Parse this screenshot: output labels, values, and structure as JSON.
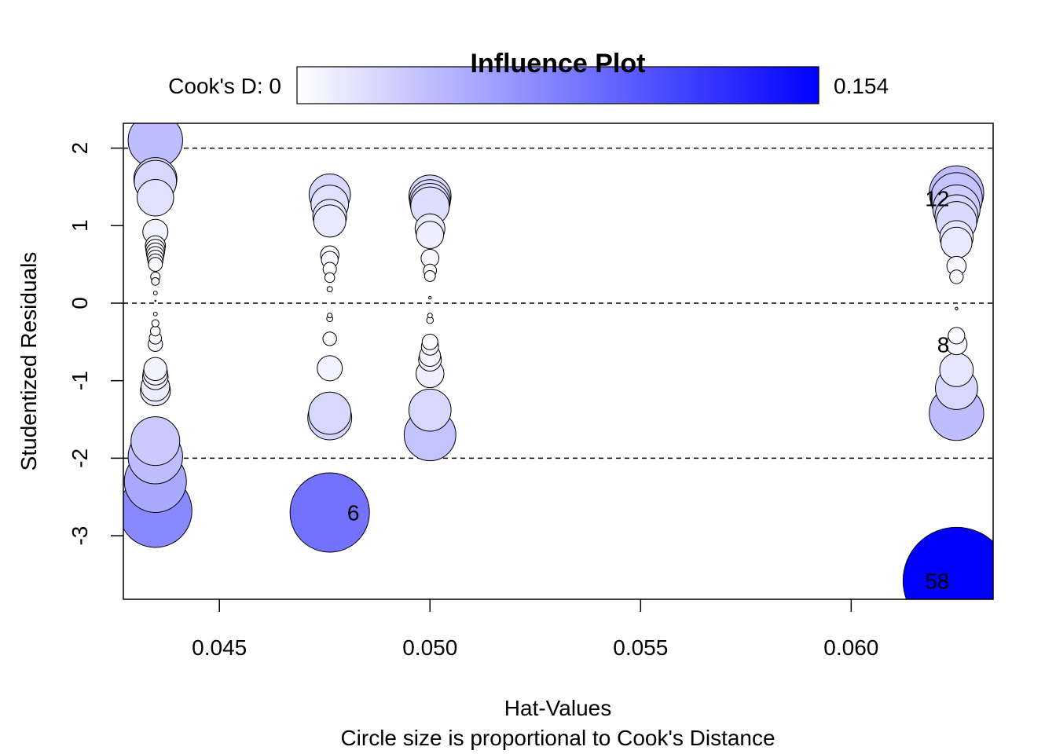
{
  "chart_data": {
    "type": "scatter",
    "title": "Influence Plot",
    "xlabel": "Hat-Values",
    "ylabel": "Studentized Residuals",
    "subtitle": "Circle size is proportional to Cook's Distance",
    "xlim": [
      0.04272,
      0.06337
    ],
    "ylim": [
      -3.82,
      2.32
    ],
    "x_ticks": [
      0.045,
      0.05,
      0.055,
      0.06
    ],
    "x_tick_labels": [
      "0.045",
      "0.050",
      "0.055",
      "0.060"
    ],
    "y_ticks": [
      -3,
      -2,
      -1,
      0,
      1,
      2
    ],
    "y_tick_labels": [
      "-3",
      "-2",
      "-1",
      "0",
      "1",
      "2"
    ],
    "reference_lines": [
      -2,
      0,
      2
    ],
    "grid": false,
    "legend": {
      "label_left": "Cook's D: 0",
      "label_right": "0.154",
      "min": 0,
      "max": 0.154,
      "color_low": "#ffffff",
      "color_high": "#0000ff",
      "placement": "top"
    },
    "points": [
      {
        "x": 0.04348,
        "y": 2.1,
        "d": 0.04
      },
      {
        "x": 0.04348,
        "y": 1.6,
        "d": 0.025
      },
      {
        "x": 0.04348,
        "y": 1.57,
        "d": 0.024
      },
      {
        "x": 0.04348,
        "y": 1.36,
        "d": 0.018
      },
      {
        "x": 0.04348,
        "y": 0.92,
        "d": 0.0085
      },
      {
        "x": 0.04348,
        "y": 0.74,
        "d": 0.0055
      },
      {
        "x": 0.04348,
        "y": 0.7,
        "d": 0.005
      },
      {
        "x": 0.04348,
        "y": 0.66,
        "d": 0.0045
      },
      {
        "x": 0.04348,
        "y": 0.62,
        "d": 0.004
      },
      {
        "x": 0.04348,
        "y": 0.58,
        "d": 0.0035
      },
      {
        "x": 0.04348,
        "y": 0.54,
        "d": 0.003
      },
      {
        "x": 0.04348,
        "y": 0.5,
        "d": 0.0026
      },
      {
        "x": 0.04348,
        "y": 0.34,
        "d": 0.0012
      },
      {
        "x": 0.04348,
        "y": 0.28,
        "d": 0.0008
      },
      {
        "x": 0.04348,
        "y": 0.13,
        "d": 0.0002
      },
      {
        "x": 0.04348,
        "y": 0.03,
        "d": 1e-05
      },
      {
        "x": 0.04348,
        "y": -0.14,
        "d": 0.0002
      },
      {
        "x": 0.04348,
        "y": -0.26,
        "d": 0.0007
      },
      {
        "x": 0.04348,
        "y": -0.36,
        "d": 0.0013
      },
      {
        "x": 0.04348,
        "y": -0.45,
        "d": 0.002
      },
      {
        "x": 0.04348,
        "y": -0.53,
        "d": 0.0028
      },
      {
        "x": 0.04348,
        "y": -0.85,
        "d": 0.0072
      },
      {
        "x": 0.04348,
        "y": -0.9,
        "d": 0.008
      },
      {
        "x": 0.04348,
        "y": -0.95,
        "d": 0.0088
      },
      {
        "x": 0.04348,
        "y": -1.08,
        "d": 0.011
      },
      {
        "x": 0.04348,
        "y": -1.13,
        "d": 0.0122
      },
      {
        "x": 0.04348,
        "y": -1.78,
        "d": 0.032
      },
      {
        "x": 0.04348,
        "y": -1.98,
        "d": 0.04
      },
      {
        "x": 0.04348,
        "y": -2.3,
        "d": 0.052
      },
      {
        "x": 0.04348,
        "y": -2.68,
        "d": 0.072
      },
      {
        "x": 0.04762,
        "y": 1.4,
        "d": 0.023
      },
      {
        "x": 0.04762,
        "y": 1.28,
        "d": 0.019
      },
      {
        "x": 0.04762,
        "y": 1.12,
        "d": 0.0155
      },
      {
        "x": 0.04762,
        "y": 1.06,
        "d": 0.014
      },
      {
        "x": 0.04762,
        "y": 0.62,
        "d": 0.0046
      },
      {
        "x": 0.04762,
        "y": 0.56,
        "d": 0.0038
      },
      {
        "x": 0.04762,
        "y": 0.44,
        "d": 0.0024
      },
      {
        "x": 0.04762,
        "y": 0.33,
        "d": 0.0013
      },
      {
        "x": 0.04762,
        "y": 0.18,
        "d": 0.0004
      },
      {
        "x": 0.04762,
        "y": -0.16,
        "d": 0.0003
      },
      {
        "x": 0.04762,
        "y": -0.2,
        "d": 0.0005
      },
      {
        "x": 0.04762,
        "y": -0.46,
        "d": 0.0025
      },
      {
        "x": 0.04762,
        "y": -0.84,
        "d": 0.0085
      },
      {
        "x": 0.04762,
        "y": -1.42,
        "d": 0.024
      },
      {
        "x": 0.04762,
        "y": -1.48,
        "d": 0.026
      },
      {
        "x": 0.04762,
        "y": -2.7,
        "d": 0.085,
        "label": "6"
      },
      {
        "x": 0.05,
        "y": 1.38,
        "d": 0.024
      },
      {
        "x": 0.05,
        "y": 1.33,
        "d": 0.0225
      },
      {
        "x": 0.05,
        "y": 1.29,
        "d": 0.021
      },
      {
        "x": 0.05,
        "y": 1.25,
        "d": 0.02
      },
      {
        "x": 0.05,
        "y": 0.96,
        "d": 0.012
      },
      {
        "x": 0.05,
        "y": 0.88,
        "d": 0.01
      },
      {
        "x": 0.05,
        "y": 0.58,
        "d": 0.0043
      },
      {
        "x": 0.05,
        "y": 0.42,
        "d": 0.0023
      },
      {
        "x": 0.05,
        "y": 0.35,
        "d": 0.0016
      },
      {
        "x": 0.05,
        "y": 0.07,
        "d": 0.0001
      },
      {
        "x": 0.05,
        "y": -0.16,
        "d": 0.0003
      },
      {
        "x": 0.05,
        "y": -0.22,
        "d": 0.0006
      },
      {
        "x": 0.05,
        "y": -0.5,
        "d": 0.0033
      },
      {
        "x": 0.05,
        "y": -0.56,
        "d": 0.004
      },
      {
        "x": 0.05,
        "y": -0.68,
        "d": 0.006
      },
      {
        "x": 0.05,
        "y": -0.73,
        "d": 0.007
      },
      {
        "x": 0.05,
        "y": -0.91,
        "d": 0.0105
      },
      {
        "x": 0.05,
        "y": -1.38,
        "d": 0.024
      },
      {
        "x": 0.05,
        "y": -1.7,
        "d": 0.036
      },
      {
        "x": 0.0625,
        "y": 1.42,
        "d": 0.04
      },
      {
        "x": 0.0625,
        "y": 1.35,
        "d": 0.036,
        "label": "12"
      },
      {
        "x": 0.0625,
        "y": 1.22,
        "d": 0.03
      },
      {
        "x": 0.0625,
        "y": 1.12,
        "d": 0.025
      },
      {
        "x": 0.0625,
        "y": 1.05,
        "d": 0.022
      },
      {
        "x": 0.0625,
        "y": 0.85,
        "d": 0.015
      },
      {
        "x": 0.0625,
        "y": 0.78,
        "d": 0.013
      },
      {
        "x": 0.0625,
        "y": 0.48,
        "d": 0.005
      },
      {
        "x": 0.0625,
        "y": 0.34,
        "d": 0.0025
      },
      {
        "x": 0.0625,
        "y": -0.07,
        "d": 0.0001
      },
      {
        "x": 0.0625,
        "y": -0.42,
        "d": 0.0037
      },
      {
        "x": 0.0625,
        "y": -0.53,
        "d": 0.006,
        "label": "8"
      },
      {
        "x": 0.0625,
        "y": -0.86,
        "d": 0.0152
      },
      {
        "x": 0.0625,
        "y": -1.1,
        "d": 0.024
      },
      {
        "x": 0.0625,
        "y": -1.42,
        "d": 0.04
      },
      {
        "x": 0.0625,
        "y": -3.58,
        "d": 0.154,
        "label": "58"
      }
    ]
  }
}
